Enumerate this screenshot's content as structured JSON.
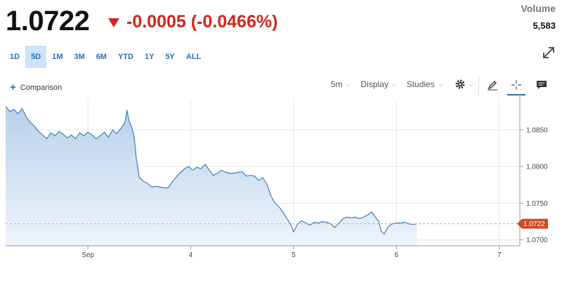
{
  "quote": {
    "price": "1.0722",
    "change": "-0.0005 (-0.0466%)",
    "volume_label": "Volume",
    "volume_value": "5,583"
  },
  "ranges": [
    {
      "label": "1D",
      "selected": false
    },
    {
      "label": "5D",
      "selected": true
    },
    {
      "label": "1M",
      "selected": false
    },
    {
      "label": "3M",
      "selected": false
    },
    {
      "label": "6M",
      "selected": false
    },
    {
      "label": "YTD",
      "selected": false
    },
    {
      "label": "1Y",
      "selected": false
    },
    {
      "label": "5Y",
      "selected": false
    },
    {
      "label": "ALL",
      "selected": false
    }
  ],
  "toolbar": {
    "comparison_label": "Comparison",
    "interval_label": "5m",
    "display_label": "Display",
    "studies_label": "Studies"
  },
  "icons": [
    "expand-icon",
    "plus-icon",
    "gear-icon",
    "pencil-icon",
    "crosshair-icon",
    "comment-icon"
  ],
  "colors": {
    "accent": "#2a6fb5",
    "negative": "#d0271d",
    "line": "#3b7fc4",
    "area_top": "#bcd4ec",
    "selected_range_bg": "#cfe2f7"
  },
  "chart_data": {
    "type": "area",
    "x_unit": "trading day",
    "x_ticks": [
      {
        "x": 2,
        "label": "Sep"
      },
      {
        "x": 3,
        "label": "4"
      },
      {
        "x": 4,
        "label": "5"
      },
      {
        "x": 5,
        "label": "6"
      },
      {
        "x": 6,
        "label": "7"
      }
    ],
    "y_ticks": [
      1.07,
      1.075,
      1.08,
      1.085
    ],
    "y_tick_labels": [
      "1.0700",
      "1.0750",
      "1.0800",
      "1.0850"
    ],
    "ylim": [
      1.0692,
      1.0893
    ],
    "xlim": [
      1.2,
      6.2
    ],
    "last_price_label": "1.0722",
    "last_price": 1.0722,
    "grid": true,
    "points": [
      [
        1.2,
        1.0882
      ],
      [
        1.24,
        1.0875
      ],
      [
        1.28,
        1.0878
      ],
      [
        1.32,
        1.0872
      ],
      [
        1.36,
        1.0879
      ],
      [
        1.4,
        1.0868
      ],
      [
        1.44,
        1.086
      ],
      [
        1.48,
        1.0855
      ],
      [
        1.52,
        1.0848
      ],
      [
        1.56,
        1.0843
      ],
      [
        1.6,
        1.0838
      ],
      [
        1.64,
        1.0846
      ],
      [
        1.68,
        1.0842
      ],
      [
        1.72,
        1.0848
      ],
      [
        1.76,
        1.0844
      ],
      [
        1.8,
        1.0839
      ],
      [
        1.84,
        1.0843
      ],
      [
        1.88,
        1.0838
      ],
      [
        1.92,
        1.0846
      ],
      [
        1.96,
        1.0842
      ],
      [
        2.0,
        1.0847
      ],
      [
        2.04,
        1.0843
      ],
      [
        2.08,
        1.0838
      ],
      [
        2.12,
        1.0842
      ],
      [
        2.16,
        1.0847
      ],
      [
        2.2,
        1.084
      ],
      [
        2.24,
        1.085
      ],
      [
        2.28,
        1.0845
      ],
      [
        2.32,
        1.0852
      ],
      [
        2.36,
        1.086
      ],
      [
        2.38,
        1.0877
      ],
      [
        2.4,
        1.0862
      ],
      [
        2.43,
        1.0852
      ],
      [
        2.45,
        1.084
      ],
      [
        2.47,
        1.0812
      ],
      [
        2.5,
        1.0785
      ],
      [
        2.54,
        1.078
      ],
      [
        2.58,
        1.0777
      ],
      [
        2.62,
        1.0772
      ],
      [
        2.66,
        1.0773
      ],
      [
        2.7,
        1.0772
      ],
      [
        2.74,
        1.0771
      ],
      [
        2.78,
        1.0771
      ],
      [
        2.82,
        1.0779
      ],
      [
        2.86,
        1.0786
      ],
      [
        2.9,
        1.0792
      ],
      [
        2.94,
        1.0797
      ],
      [
        2.98,
        1.08
      ],
      [
        3.02,
        1.0795
      ],
      [
        3.06,
        1.0799
      ],
      [
        3.1,
        1.0797
      ],
      [
        3.14,
        1.0803
      ],
      [
        3.18,
        1.0795
      ],
      [
        3.22,
        1.0788
      ],
      [
        3.26,
        1.0791
      ],
      [
        3.3,
        1.0795
      ],
      [
        3.34,
        1.0792
      ],
      [
        3.38,
        1.0791
      ],
      [
        3.42,
        1.0791
      ],
      [
        3.46,
        1.0792
      ],
      [
        3.5,
        1.0793
      ],
      [
        3.54,
        1.0787
      ],
      [
        3.58,
        1.0788
      ],
      [
        3.62,
        1.0787
      ],
      [
        3.66,
        1.0781
      ],
      [
        3.7,
        1.0785
      ],
      [
        3.74,
        1.0776
      ],
      [
        3.78,
        1.076
      ],
      [
        3.82,
        1.075
      ],
      [
        3.86,
        1.0745
      ],
      [
        3.9,
        1.0737
      ],
      [
        3.94,
        1.0728
      ],
      [
        3.97,
        1.0722
      ],
      [
        4.0,
        1.0711
      ],
      [
        4.04,
        1.0722
      ],
      [
        4.08,
        1.0726
      ],
      [
        4.12,
        1.0723
      ],
      [
        4.16,
        1.072
      ],
      [
        4.2,
        1.0724
      ],
      [
        4.24,
        1.0723
      ],
      [
        4.28,
        1.0725
      ],
      [
        4.32,
        1.0724
      ],
      [
        4.36,
        1.0722
      ],
      [
        4.4,
        1.0717
      ],
      [
        4.44,
        1.0723
      ],
      [
        4.48,
        1.0729
      ],
      [
        4.52,
        1.0731
      ],
      [
        4.56,
        1.073
      ],
      [
        4.6,
        1.0731
      ],
      [
        4.64,
        1.0729
      ],
      [
        4.68,
        1.0731
      ],
      [
        4.72,
        1.0734
      ],
      [
        4.76,
        1.0738
      ],
      [
        4.8,
        1.073
      ],
      [
        4.83,
        1.0725
      ],
      [
        4.85,
        1.0712
      ],
      [
        4.88,
        1.0708
      ],
      [
        4.92,
        1.0718
      ],
      [
        4.96,
        1.0722
      ],
      [
        5.0,
        1.0723
      ],
      [
        5.04,
        1.0723
      ],
      [
        5.08,
        1.0724
      ],
      [
        5.12,
        1.0722
      ],
      [
        5.16,
        1.0721
      ],
      [
        5.2,
        1.0722
      ]
    ]
  }
}
